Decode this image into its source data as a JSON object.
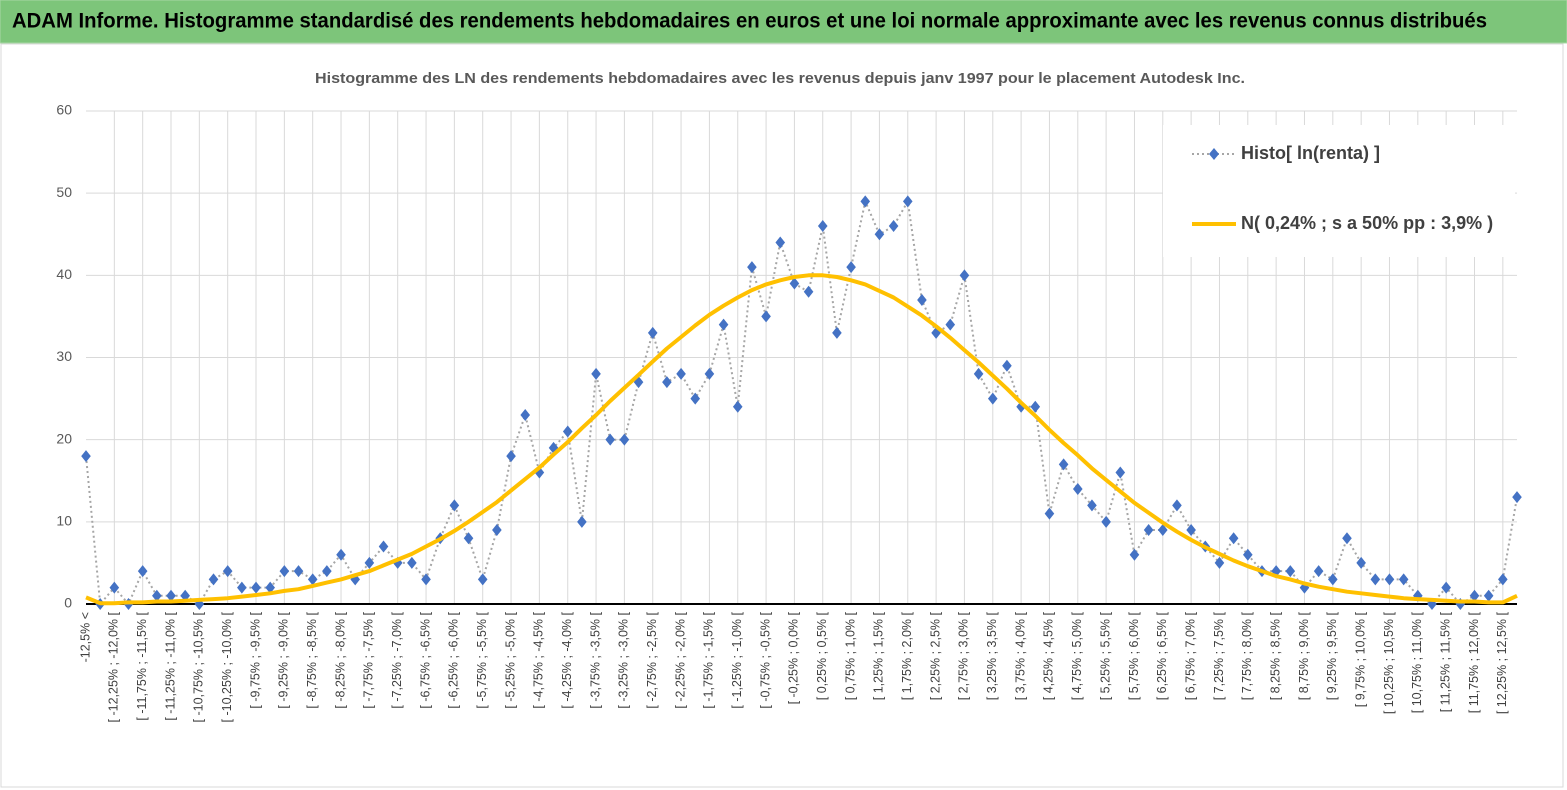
{
  "header": {
    "title": "ADAM Informe. Histogramme standardisé des rendements hebdomadaires en euros et une loi normale approximante avec les revenus connus distribués"
  },
  "chart_data": {
    "type": "line",
    "title": "Histogramme des LN des rendements hebdomadaires avec les revenus depuis janv 1997 pour le placement Autodesk Inc.",
    "categories": [
      "-12,5% <",
      null,
      "[ -12,25% ; -12,0% [",
      null,
      "[ -11,75% ; -11,5% [",
      null,
      "[ -11,25% ; -11,0% [",
      null,
      "[ -10,75% ; -10,5% [",
      null,
      "[ -10,25% ; -10,0% [",
      null,
      "[ -9,75% ; -9,5% [",
      null,
      "[ -9,25% ; -9,0% [",
      null,
      "[ -8,75% ; -8,5% [",
      null,
      "[ -8,25% ; -8,0% [",
      null,
      "[ -7,75% ; -7,5% [",
      null,
      "[ -7,25% ; -7,0% [",
      null,
      "[ -6,75% ; -6,5% [",
      null,
      "[ -6,25% ; -6,0% [",
      null,
      "[ -5,75% ; -5,5% [",
      null,
      "[ -5,25% ; -5,0% [",
      null,
      "[ -4,75% ; -4,5% [",
      null,
      "[ -4,25% ; -4,0% [",
      null,
      "[ -3,75% ; -3,5% [",
      null,
      "[ -3,25% ; -3,0% [",
      null,
      "[ -2,75% ; -2,5% [",
      null,
      "[ -2,25% ; -2,0% [",
      null,
      "[ -1,75% ; -1,5% [",
      null,
      "[ -1,25% ; -1,0% [",
      null,
      "[ -0,75% ; -0,5% [",
      null,
      "[ -0,25% ; 0,0% [",
      null,
      "[ 0,25% ; 0,5% [",
      null,
      "[ 0,75% ; 1,0% [",
      null,
      "[ 1,25% ; 1,5% [",
      null,
      "[ 1,75% ; 2,0% [",
      null,
      "[ 2,25% ; 2,5% [",
      null,
      "[ 2,75% ; 3,0% [",
      null,
      "[ 3,25% ; 3,5% [",
      null,
      "[ 3,75% ; 4,0% [",
      null,
      "[ 4,25% ; 4,5% [",
      null,
      "[ 4,75% ; 5,0% [",
      null,
      "[ 5,25% ; 5,5% [",
      null,
      "[ 5,75% ; 6,0% [",
      null,
      "[ 6,25% ; 6,5% [",
      null,
      "[ 6,75% ; 7,0% [",
      null,
      "[ 7,25% ; 7,5% [",
      null,
      "[ 7,75% ; 8,0% [",
      null,
      "[ 8,25% ; 8,5% [",
      null,
      "[ 8,75% ; 9,0% [",
      null,
      "[ 9,25% ; 9,5% [",
      null,
      "[ 9,75% ; 10,0% [",
      null,
      "[ 10,25% ; 10,5% [",
      null,
      "[ 10,75% ; 11,0% [",
      null,
      "[ 11,25% ; 11,5% [",
      null,
      "[ 11,75% ; 12,0% [",
      null,
      "[ 12,25% ; 12,5% [",
      null
    ],
    "series": [
      {
        "name": "Histo[ ln(renta) ]",
        "color": "#4472c4",
        "marker": "diamond",
        "line": "dotted",
        "values": [
          18,
          0,
          2,
          0,
          4,
          1,
          1,
          1,
          0,
          3,
          4,
          2,
          2,
          2,
          4,
          4,
          3,
          4,
          6,
          3,
          5,
          7,
          5,
          5,
          3,
          8,
          12,
          8,
          3,
          9,
          18,
          23,
          16,
          19,
          21,
          10,
          28,
          20,
          20,
          27,
          33,
          27,
          28,
          25,
          28,
          34,
          24,
          41,
          35,
          44,
          39,
          38,
          46,
          33,
          41,
          49,
          45,
          46,
          49,
          37,
          33,
          34,
          40,
          28,
          25,
          29,
          24,
          24,
          11,
          17,
          14,
          12,
          10,
          16,
          6,
          9,
          9,
          12,
          9,
          7,
          5,
          8,
          6,
          4,
          4,
          4,
          2,
          4,
          3,
          8,
          5,
          3,
          3,
          3,
          1,
          0,
          2,
          0,
          1,
          1,
          3,
          13
        ]
      },
      {
        "name": "N( 0,24% ; s a 50% pp : 3,9% )",
        "color": "#ffc000",
        "marker": "none",
        "line": "solid",
        "values": [
          0.8,
          0.1,
          0.1,
          0.2,
          0.2,
          0.3,
          0.3,
          0.4,
          0.5,
          0.6,
          0.7,
          0.9,
          1.1,
          1.3,
          1.6,
          1.8,
          2.2,
          2.6,
          3.0,
          3.5,
          4.0,
          4.7,
          5.4,
          6.1,
          7.0,
          7.9,
          8.9,
          10.0,
          11.2,
          12.4,
          13.8,
          15.2,
          16.6,
          18.2,
          19.7,
          21.4,
          23.0,
          24.7,
          26.3,
          27.9,
          29.5,
          31.1,
          32.5,
          33.9,
          35.2,
          36.3,
          37.3,
          38.2,
          38.9,
          39.4,
          39.8,
          40.0,
          40.0,
          39.8,
          39.4,
          38.9,
          38.1,
          37.3,
          36.2,
          35.1,
          33.8,
          32.4,
          30.9,
          29.4,
          27.8,
          26.2,
          24.5,
          22.9,
          21.2,
          19.6,
          18.1,
          16.5,
          15.1,
          13.7,
          12.3,
          11.1,
          9.9,
          8.8,
          7.8,
          6.9,
          6.1,
          5.3,
          4.6,
          4.0,
          3.4,
          3.0,
          2.5,
          2.1,
          1.8,
          1.5,
          1.3,
          1.1,
          0.9,
          0.7,
          0.6,
          0.5,
          0.4,
          0.3,
          0.3,
          0.2,
          0.2,
          1.0
        ]
      }
    ],
    "ylim": [
      0,
      60
    ],
    "yticks": [
      0,
      10,
      20,
      30,
      40,
      50,
      60
    ],
    "grid": true,
    "legend": "upper right"
  }
}
